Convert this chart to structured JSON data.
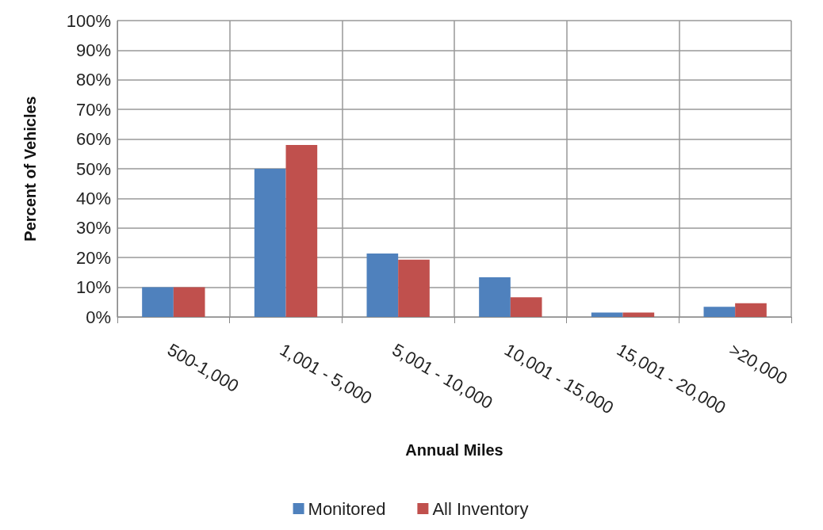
{
  "chart_data": {
    "type": "bar",
    "xlabel": "Annual Miles",
    "ylabel": "Percent of Vehicles",
    "categories": [
      "500-1,000",
      "1,001 - 5,000",
      "5,001 - 10,000",
      "10,001 - 15,000",
      "15,001 - 20,000",
      ">20,000"
    ],
    "series": [
      {
        "name": "Monitored",
        "color": "#4f81bd",
        "values": [
          10,
          50,
          21.4,
          13.4,
          1.5,
          3.4
        ]
      },
      {
        "name": "All Inventory",
        "color": "#c0504d",
        "values": [
          10,
          58,
          19.3,
          6.6,
          1.5,
          4.6
        ]
      }
    ],
    "ylim": [
      0,
      100
    ],
    "yticks": [
      {
        "value": 0,
        "label": "0%"
      },
      {
        "value": 10,
        "label": "10%"
      },
      {
        "value": 20,
        "label": "20%"
      },
      {
        "value": 30,
        "label": "30%"
      },
      {
        "value": 40,
        "label": "40%"
      },
      {
        "value": 50,
        "label": "50%"
      },
      {
        "value": 60,
        "label": "60%"
      },
      {
        "value": 70,
        "label": "70%"
      },
      {
        "value": 80,
        "label": "80%"
      },
      {
        "value": 90,
        "label": "90%"
      },
      {
        "value": 100,
        "label": "100%"
      }
    ],
    "grid": true,
    "legend": "bottom"
  }
}
